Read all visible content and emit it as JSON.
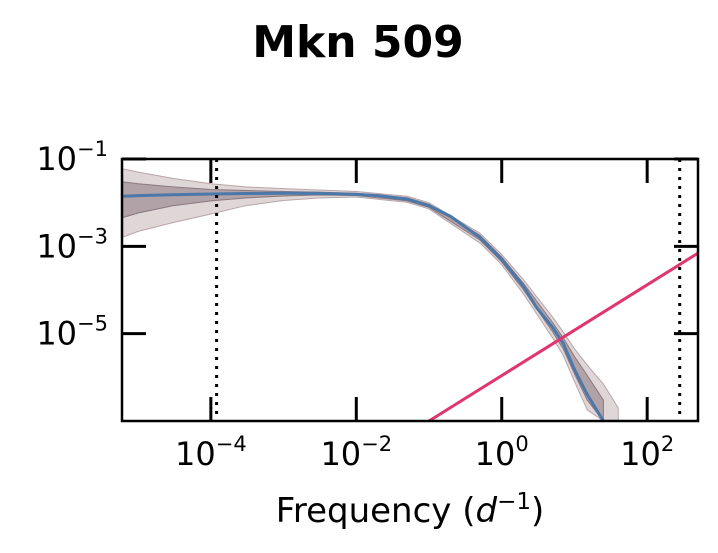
{
  "chart_data": {
    "type": "line",
    "title": "Mkn 509",
    "xlabel": {
      "prefix": "Frequency (",
      "var": "d",
      "exp": "−1",
      "suffix": ")"
    },
    "ylabel": "",
    "x_scale": "log",
    "y_scale": "log",
    "xlim": [
      6e-06,
      500
    ],
    "ylim": [
      1e-07,
      0.1
    ],
    "x_ticks": [
      {
        "value": 0.0001,
        "base": "10",
        "exp": "−4"
      },
      {
        "value": 0.01,
        "base": "10",
        "exp": "−2"
      },
      {
        "value": 1,
        "base": "10",
        "exp": "0"
      },
      {
        "value": 100,
        "base": "10",
        "exp": "2"
      }
    ],
    "y_ticks": [
      {
        "value": 0.1,
        "base": "10",
        "exp": "−1"
      },
      {
        "value": 0.001,
        "base": "10",
        "exp": "−3"
      },
      {
        "value": 1e-05,
        "base": "10",
        "exp": "−5"
      }
    ],
    "vertical_lines": [
      0.00012,
      280
    ],
    "grid": false,
    "series": [
      {
        "style": "model-median",
        "color": "#4b78a8",
        "x": [
          6e-06,
          1e-05,
          3e-05,
          0.0001,
          0.0003,
          0.001,
          0.003,
          0.01,
          0.02,
          0.05,
          0.1,
          0.2,
          0.5,
          1,
          2,
          3,
          5,
          7,
          10,
          15,
          25
        ],
        "y": [
          0.014,
          0.0145,
          0.0152,
          0.0158,
          0.0162,
          0.0164,
          0.0163,
          0.0155,
          0.0145,
          0.012,
          0.0085,
          0.0048,
          0.0016,
          0.0005,
          0.00012,
          4e-05,
          1.4e-05,
          6e-06,
          1.5e-06,
          4e-07,
          1e-07
        ]
      },
      {
        "style": "inner-band",
        "color": "#8a7880",
        "x": [
          6e-06,
          1e-05,
          3e-05,
          0.0001,
          0.0003,
          0.001,
          0.003,
          0.01,
          0.05,
          0.1,
          0.5,
          1,
          2,
          5,
          7,
          10,
          15,
          25
        ],
        "upper": [
          0.03,
          0.027,
          0.023,
          0.02,
          0.019,
          0.018,
          0.0175,
          0.0165,
          0.013,
          0.0092,
          0.0018,
          0.00057,
          0.00014,
          1.8e-05,
          8e-06,
          3e-06,
          1.1e-06,
          3e-07
        ],
        "lower": [
          0.0045,
          0.0058,
          0.0085,
          0.011,
          0.0128,
          0.0142,
          0.015,
          0.0146,
          0.011,
          0.0078,
          0.0014,
          0.00044,
          0.0001,
          1.1e-05,
          4.5e-06,
          1.2e-06,
          3e-07,
          1e-07
        ]
      },
      {
        "style": "outer-band",
        "color": "#b8a5a8",
        "x": [
          6e-06,
          1e-05,
          3e-05,
          0.0001,
          0.0003,
          0.001,
          0.003,
          0.01,
          0.05,
          0.1,
          0.5,
          1,
          2,
          5,
          7,
          10,
          15,
          25,
          40
        ],
        "upper": [
          0.06,
          0.05,
          0.036,
          0.027,
          0.023,
          0.021,
          0.0195,
          0.018,
          0.014,
          0.01,
          0.002,
          0.00065,
          0.00017,
          2.4e-05,
          1.1e-05,
          4.5e-06,
          1.9e-06,
          7e-07,
          2e-07
        ],
        "lower": [
          0.0016,
          0.0022,
          0.0035,
          0.0055,
          0.0085,
          0.0112,
          0.0128,
          0.0135,
          0.0102,
          0.0072,
          0.0012,
          0.00038,
          8e-05,
          8e-06,
          3.2e-06,
          8e-07,
          1.8e-07,
          1e-07,
          1e-07
        ]
      },
      {
        "style": "noise-level",
        "color": "#e0366e",
        "x": [
          0.1,
          500
        ],
        "y": [
          1e-07,
          0.0007
        ]
      }
    ]
  }
}
